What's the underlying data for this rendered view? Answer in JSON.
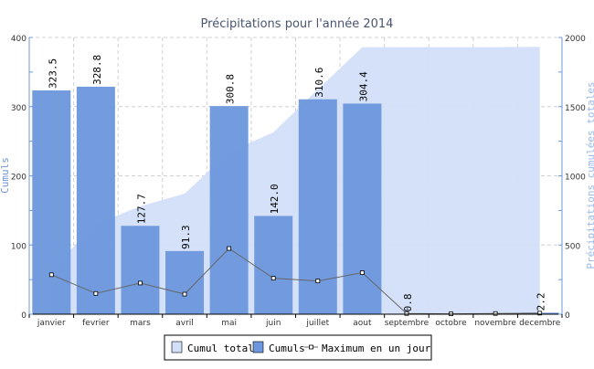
{
  "chart_data": {
    "type": "bar",
    "title": "Précipitations pour l'année 2014",
    "ylabel": "Cumuls",
    "y2label": "Précipitations cumulées totales",
    "ylim": [
      0,
      400
    ],
    "y2lim": [
      0,
      2000
    ],
    "yticks": [
      "0",
      "100",
      "200",
      "300",
      "400"
    ],
    "y2ticks": [
      "0",
      "500",
      "1000",
      "1500",
      "2000"
    ],
    "grid": true,
    "legend_position": "bottom",
    "categories": [
      "janvier",
      "fevrier",
      "mars",
      "avril",
      "mai",
      "juin",
      "juillet",
      "aout",
      "septembre",
      "octobre",
      "novembre",
      "decembre"
    ],
    "series": [
      {
        "name": "Cumul total",
        "type": "area",
        "axis": "right",
        "color": "#d2dff8",
        "values": [
          323.5,
          652.3,
          780.0,
          871.3,
          1172.1,
          1314.1,
          1624.7,
          1929.1,
          1929.9,
          1929.9,
          1929.9,
          1932.1
        ]
      },
      {
        "name": "Cumuls",
        "type": "bar",
        "axis": "left",
        "color": "#6c97dc",
        "values": [
          323.5,
          328.8,
          127.7,
          91.3,
          300.8,
          142.0,
          310.6,
          304.4,
          0.8,
          0,
          0,
          2.2
        ],
        "labels": [
          "323.5",
          "328.8",
          "127.7",
          "91.3",
          "300.8",
          "142.0",
          "310.6",
          "304.4",
          "0.8",
          "",
          "",
          "2.2"
        ]
      },
      {
        "name": "Maximum en un jour",
        "type": "line",
        "axis": "left",
        "color": "#666666",
        "values": [
          57,
          30,
          45,
          29,
          95,
          52,
          48,
          60,
          1,
          0.5,
          1,
          1.5
        ]
      }
    ]
  }
}
